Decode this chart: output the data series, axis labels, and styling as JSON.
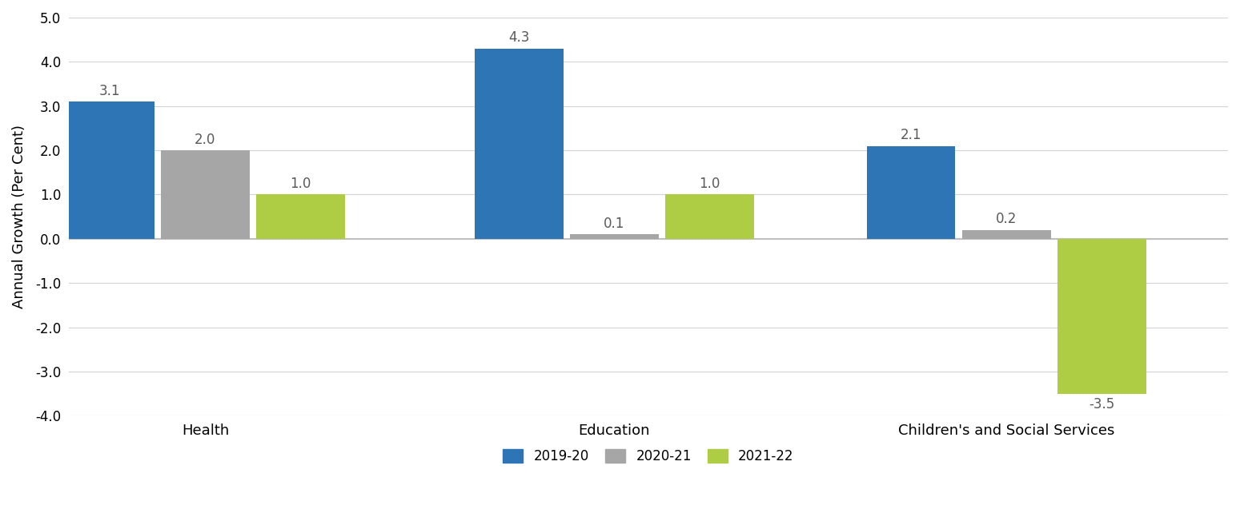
{
  "categories": [
    "Health",
    "Education",
    "Children's and Social Services"
  ],
  "series": {
    "2019-20": [
      3.1,
      4.3,
      2.1
    ],
    "2020-21": [
      2.0,
      0.1,
      0.2
    ],
    "2021-22": [
      1.0,
      1.0,
      -3.5
    ]
  },
  "colors": {
    "2019-20": "#2E75B6",
    "2020-21": "#A6A6A6",
    "2021-22": "#AECD44"
  },
  "ylabel": "Annual Growth (Per Cent)",
  "ylim": [
    -4.0,
    5.0
  ],
  "yticks": [
    -4.0,
    -3.0,
    -2.0,
    -1.0,
    0.0,
    1.0,
    2.0,
    3.0,
    4.0,
    5.0
  ],
  "ytick_labels": [
    "-4.0",
    "-3.0",
    "-2.0",
    "-1.0",
    "0.0",
    "1.0",
    "2.0",
    "3.0",
    "4.0",
    "5.0"
  ],
  "legend_labels": [
    "2019-20",
    "2020-21",
    "2021-22"
  ],
  "bar_width": 0.28,
  "label_fontsize": 12,
  "axis_fontsize": 13,
  "tick_fontsize": 12,
  "legend_fontsize": 12,
  "label_color": "#595959",
  "background_color": "#FFFFFF",
  "grid_color": "#D3D3D3",
  "zero_line_color": "#BFBFBF",
  "group_positions": [
    0.35,
    1.55,
    2.7
  ],
  "xlim_left": -0.05,
  "xlim_right": 3.35
}
